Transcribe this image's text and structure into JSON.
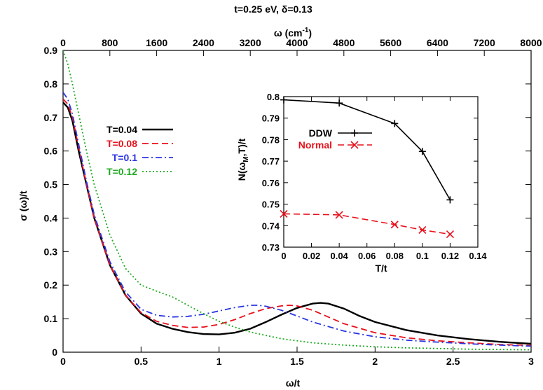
{
  "chart_data": {
    "title": "t=0.25 eV, δ=0.13",
    "main": {
      "type": "line",
      "xlabel": "ω/t",
      "ylabel": "σ (ω)/t",
      "xlim": [
        0,
        3
      ],
      "ylim": [
        0,
        0.9
      ],
      "x_ticks": [
        "0",
        "0.5",
        "1",
        "1.5",
        "2",
        "2.5",
        "3"
      ],
      "y_ticks": [
        "0",
        "0.1",
        "0.2",
        "0.3",
        "0.4",
        "0.5",
        "0.6",
        "0.7",
        "0.8",
        "0.9"
      ],
      "top_axis": {
        "label": "ω (cm",
        "label_sup": "-1",
        "label_end": ")",
        "ticks": [
          "0",
          "800",
          "1600",
          "2400",
          "3200",
          "4000",
          "4800",
          "5600",
          "6400",
          "7200",
          "8000"
        ]
      },
      "series": [
        {
          "name": "T=0.04",
          "color": "#000000",
          "dash": "solid",
          "x": [
            0,
            0.03,
            0.06,
            0.1,
            0.15,
            0.2,
            0.3,
            0.4,
            0.5,
            0.6,
            0.7,
            0.8,
            0.9,
            1.0,
            1.1,
            1.2,
            1.3,
            1.4,
            1.5,
            1.6,
            1.65,
            1.7,
            1.8,
            1.9,
            2.0,
            2.2,
            2.4,
            2.6,
            2.8,
            3.0
          ],
          "y": [
            0.745,
            0.73,
            0.69,
            0.6,
            0.5,
            0.4,
            0.26,
            0.17,
            0.115,
            0.085,
            0.07,
            0.06,
            0.054,
            0.053,
            0.058,
            0.07,
            0.09,
            0.112,
            0.132,
            0.145,
            0.147,
            0.145,
            0.13,
            0.108,
            0.09,
            0.066,
            0.05,
            0.039,
            0.031,
            0.025
          ]
        },
        {
          "name": "T=0.08",
          "color": "#e8101a",
          "dash": "dash",
          "x": [
            0,
            0.03,
            0.06,
            0.1,
            0.15,
            0.2,
            0.3,
            0.4,
            0.5,
            0.6,
            0.7,
            0.8,
            0.9,
            1.0,
            1.1,
            1.2,
            1.3,
            1.4,
            1.45,
            1.5,
            1.6,
            1.7,
            1.8,
            2.0,
            2.2,
            2.4,
            2.6,
            2.8,
            3.0
          ],
          "y": [
            0.755,
            0.74,
            0.7,
            0.61,
            0.5,
            0.4,
            0.26,
            0.17,
            0.118,
            0.092,
            0.08,
            0.074,
            0.075,
            0.083,
            0.097,
            0.115,
            0.13,
            0.138,
            0.14,
            0.138,
            0.125,
            0.105,
            0.085,
            0.058,
            0.043,
            0.034,
            0.028,
            0.023,
            0.02
          ]
        },
        {
          "name": "T=0.1",
          "color": "#2a35e0",
          "dash": "dashdot",
          "x": [
            0,
            0.03,
            0.06,
            0.1,
            0.15,
            0.2,
            0.3,
            0.4,
            0.5,
            0.6,
            0.7,
            0.8,
            0.9,
            1.0,
            1.1,
            1.2,
            1.25,
            1.3,
            1.4,
            1.5,
            1.6,
            1.8,
            2.0,
            2.2,
            2.4,
            2.6,
            2.8,
            3.0
          ],
          "y": [
            0.775,
            0.755,
            0.71,
            0.62,
            0.51,
            0.41,
            0.27,
            0.18,
            0.128,
            0.11,
            0.105,
            0.107,
            0.113,
            0.123,
            0.133,
            0.14,
            0.14,
            0.137,
            0.125,
            0.108,
            0.09,
            0.063,
            0.046,
            0.036,
            0.03,
            0.025,
            0.021,
            0.018
          ]
        },
        {
          "name": "T=0.12",
          "color": "#1faa20",
          "dash": "dot",
          "x": [
            0,
            0.03,
            0.06,
            0.1,
            0.15,
            0.2,
            0.3,
            0.4,
            0.5,
            0.6,
            0.7,
            0.8,
            0.9,
            1.0,
            1.1,
            1.2,
            1.4,
            1.6,
            1.8,
            2.0,
            2.2,
            2.4,
            2.6,
            2.8,
            3.0
          ],
          "y": [
            0.9,
            0.86,
            0.8,
            0.71,
            0.6,
            0.5,
            0.35,
            0.25,
            0.2,
            0.182,
            0.165,
            0.14,
            0.115,
            0.092,
            0.075,
            0.06,
            0.04,
            0.028,
            0.021,
            0.016,
            0.013,
            0.011,
            0.009,
            0.008,
            0.007
          ]
        }
      ],
      "legend_position": "left"
    },
    "inset": {
      "type": "line",
      "xlabel": "T/t",
      "ylabel": "N(ω",
      "ylabel_sub": "M",
      "ylabel_end": ",T)/t",
      "xlim": [
        0,
        0.14
      ],
      "ylim": [
        0.73,
        0.8
      ],
      "x_ticks": [
        "0",
        "0.02",
        "0.04",
        "0.06",
        "0.08",
        "0.1",
        "0.12",
        "0.14"
      ],
      "y_ticks": [
        "0.73",
        "0.74",
        "0.75",
        "0.76",
        "0.77",
        "0.78",
        "0.79",
        "0.8"
      ],
      "series": [
        {
          "name": "DDW",
          "color": "#000000",
          "dash": "solid",
          "marker": "plus",
          "x": [
            0,
            0.04,
            0.08,
            0.1,
            0.12
          ],
          "y": [
            0.7985,
            0.797,
            0.7875,
            0.7745,
            0.752
          ]
        },
        {
          "name": "Normal",
          "color": "#e8101a",
          "dash": "dash",
          "marker": "cross",
          "x": [
            0,
            0.04,
            0.08,
            0.1,
            0.12
          ],
          "y": [
            0.7455,
            0.745,
            0.7405,
            0.738,
            0.736
          ]
        }
      ],
      "legend_position": "top-left"
    }
  }
}
